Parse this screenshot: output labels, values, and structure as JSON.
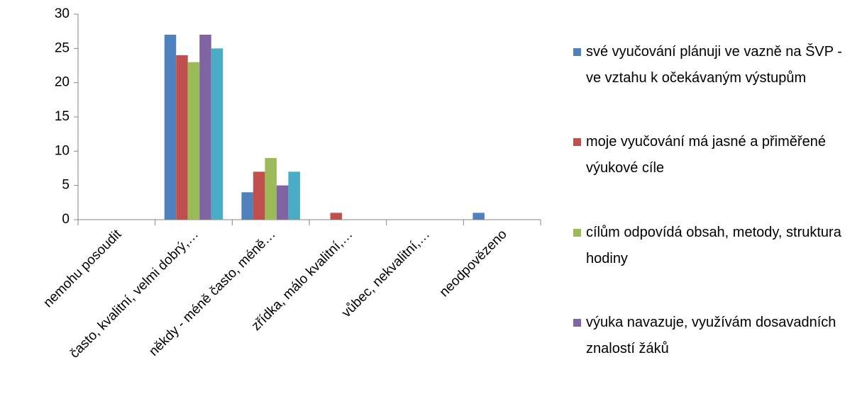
{
  "chart_data": {
    "type": "bar",
    "categories": [
      "nemohu posoudit",
      "často, kvalitní, velmi dobrý,…",
      "někdy - méně často, méně…",
      "zřídka, málo kvalitní,…",
      "vůbec, nekvalitní,…",
      "neodpovězeno"
    ],
    "series": [
      {
        "name": "své vyučování plánuji ve vazně na ŠVP - ve vztahu k očekávaným výstupům",
        "color": "#4f81bd",
        "values": [
          0,
          27,
          4,
          0,
          0,
          1
        ]
      },
      {
        "name": "moje vyučování má jasné a přiměřené výukové cíle",
        "color": "#c0504d",
        "values": [
          0,
          24,
          7,
          1,
          0,
          0
        ]
      },
      {
        "name": "cílům odpovídá obsah, metody, struktura hodiny",
        "color": "#9bbb59",
        "values": [
          0,
          23,
          9,
          0,
          0,
          0
        ]
      },
      {
        "name": "výuka navazuje, využívám dosavadních znalostí žáků",
        "color": "#8064a2",
        "values": [
          0,
          27,
          5,
          0,
          0,
          0
        ]
      },
      {
        "color": "#4bacc6",
        "values": [
          0,
          25,
          7,
          0,
          0,
          0
        ]
      }
    ],
    "ylim": [
      0,
      30
    ],
    "yticks": [
      0,
      5,
      10,
      15,
      20,
      25,
      30
    ],
    "grid": false,
    "legend": "right"
  }
}
